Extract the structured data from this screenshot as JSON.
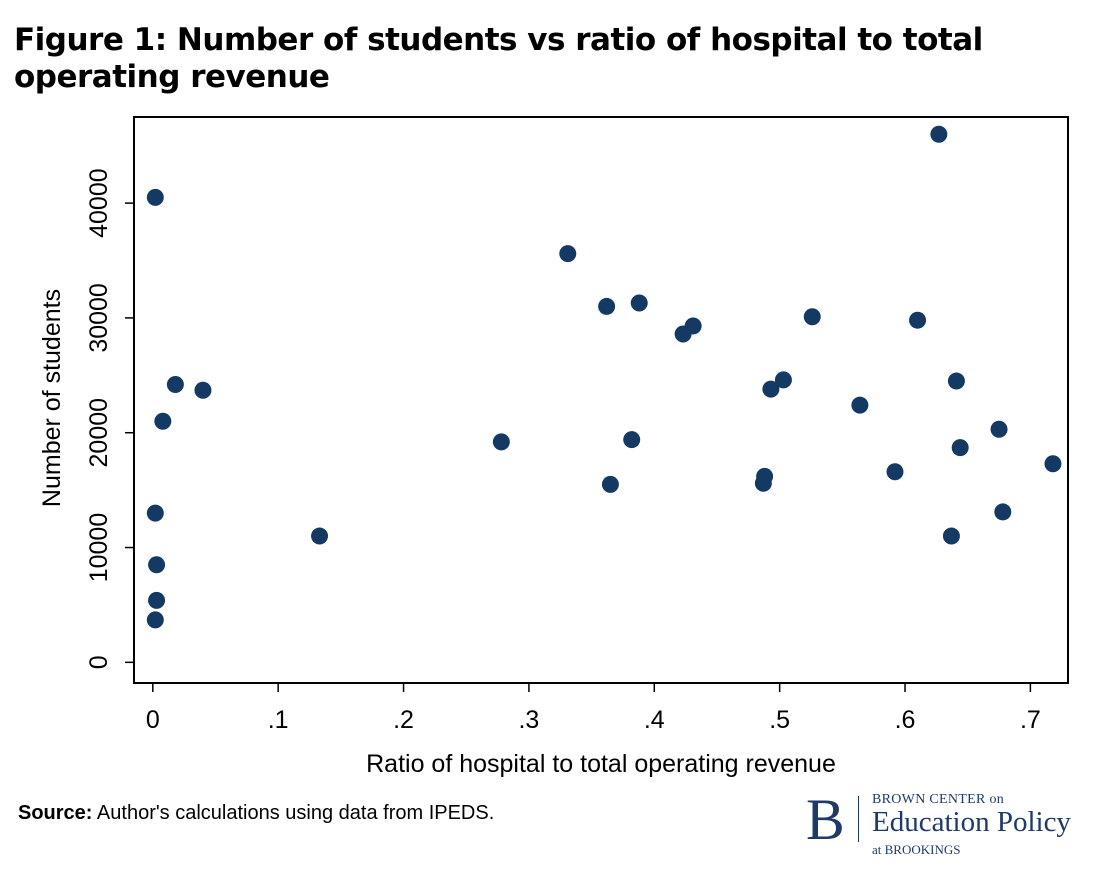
{
  "title": "Figure 1: Number of students vs ratio of hospital to total operating revenue",
  "source": {
    "label": "Source:",
    "text": "Author's calculations using data from IPEDS."
  },
  "logo": {
    "mark": "B",
    "line1": "BROWN CENTER on",
    "line2": "Education Policy",
    "line3": "at BROOKINGS"
  },
  "chart_data": {
    "type": "scatter",
    "xlabel": "Ratio of hospital to total operating revenue",
    "ylabel": "Number of students",
    "xlim": [
      -0.015,
      0.73
    ],
    "ylim": [
      -1800,
      47500
    ],
    "xticks": [
      0,
      0.1,
      0.2,
      0.3,
      0.4,
      0.5,
      0.6,
      0.7
    ],
    "xtick_labels": [
      "0",
      ".1",
      ".2",
      ".3",
      ".4",
      ".5",
      ".6",
      ".7"
    ],
    "yticks": [
      0,
      10000,
      20000,
      30000,
      40000
    ],
    "ytick_labels": [
      "0",
      "10000",
      "20000",
      "30000",
      "40000"
    ],
    "grid": false,
    "marker_color": "#143a63",
    "points": [
      {
        "x": 0.002,
        "y": 40500
      },
      {
        "x": 0.018,
        "y": 24200
      },
      {
        "x": 0.008,
        "y": 21000
      },
      {
        "x": 0.04,
        "y": 23700
      },
      {
        "x": 0.002,
        "y": 13000
      },
      {
        "x": 0.003,
        "y": 8500
      },
      {
        "x": 0.003,
        "y": 5400
      },
      {
        "x": 0.002,
        "y": 3700
      },
      {
        "x": 0.133,
        "y": 11000
      },
      {
        "x": 0.278,
        "y": 19200
      },
      {
        "x": 0.331,
        "y": 35600
      },
      {
        "x": 0.362,
        "y": 31000
      },
      {
        "x": 0.388,
        "y": 31300
      },
      {
        "x": 0.382,
        "y": 19400
      },
      {
        "x": 0.365,
        "y": 15500
      },
      {
        "x": 0.423,
        "y": 28600
      },
      {
        "x": 0.431,
        "y": 29300
      },
      {
        "x": 0.488,
        "y": 16200
      },
      {
        "x": 0.487,
        "y": 15600
      },
      {
        "x": 0.493,
        "y": 23800
      },
      {
        "x": 0.503,
        "y": 24600
      },
      {
        "x": 0.526,
        "y": 30100
      },
      {
        "x": 0.564,
        "y": 22400
      },
      {
        "x": 0.592,
        "y": 16600
      },
      {
        "x": 0.61,
        "y": 29800
      },
      {
        "x": 0.627,
        "y": 46000
      },
      {
        "x": 0.641,
        "y": 24500
      },
      {
        "x": 0.644,
        "y": 18700
      },
      {
        "x": 0.637,
        "y": 11000
      },
      {
        "x": 0.675,
        "y": 20300
      },
      {
        "x": 0.678,
        "y": 13100
      },
      {
        "x": 0.718,
        "y": 17300
      }
    ]
  }
}
